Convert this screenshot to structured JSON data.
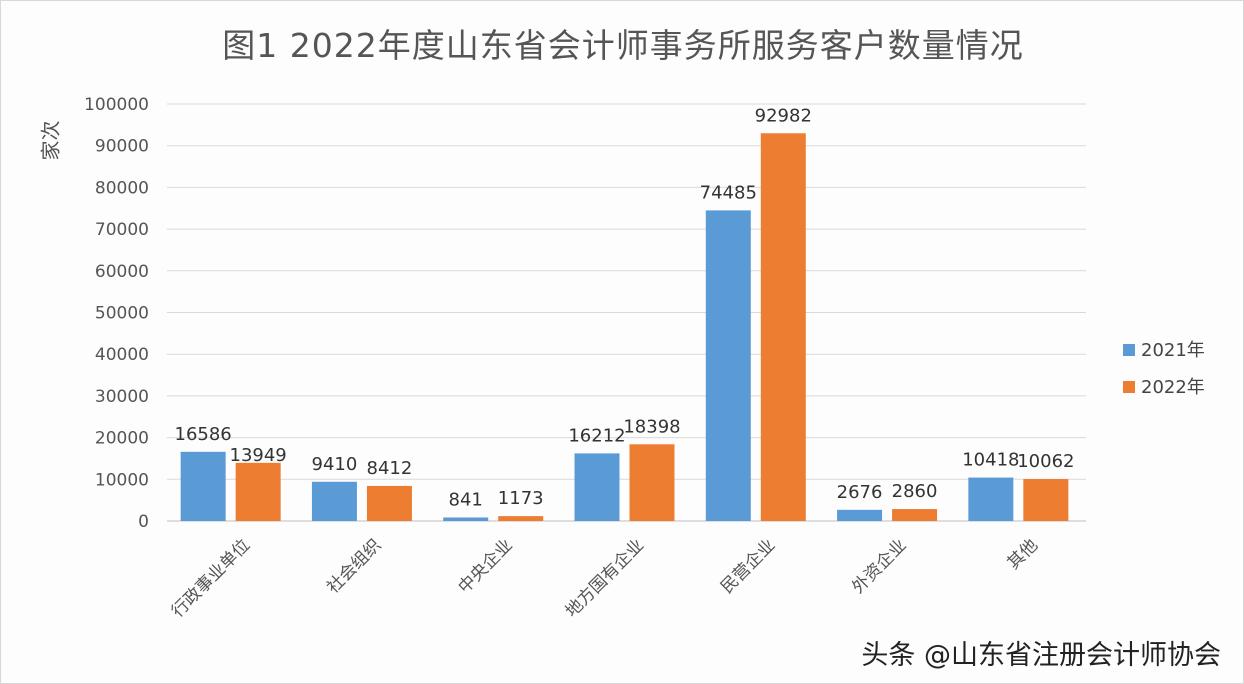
{
  "chart_data": {
    "type": "bar",
    "title": "图1  2022年度山东省会计师事务所服务客户数量情况",
    "ylabel": "家次",
    "xlabel": "",
    "ylim": [
      0,
      100000
    ],
    "yticks": [
      0,
      10000,
      20000,
      30000,
      40000,
      50000,
      60000,
      70000,
      80000,
      90000,
      100000
    ],
    "grid": true,
    "legend_position": "right",
    "categories": [
      "行政事业单位",
      "社会组织",
      "中央企业",
      "地方国有企业",
      "民营企业",
      "外资企业",
      "其他"
    ],
    "series": [
      {
        "name": "2021年",
        "color": "#5b9bd5",
        "values": [
          16586,
          9410,
          841,
          16212,
          74485,
          2676,
          10418
        ]
      },
      {
        "name": "2022年",
        "color": "#ed7d31",
        "values": [
          13949,
          8412,
          1173,
          18398,
          92982,
          2860,
          10062
        ]
      }
    ]
  },
  "watermark": "头条 @山东省注册会计师协会"
}
